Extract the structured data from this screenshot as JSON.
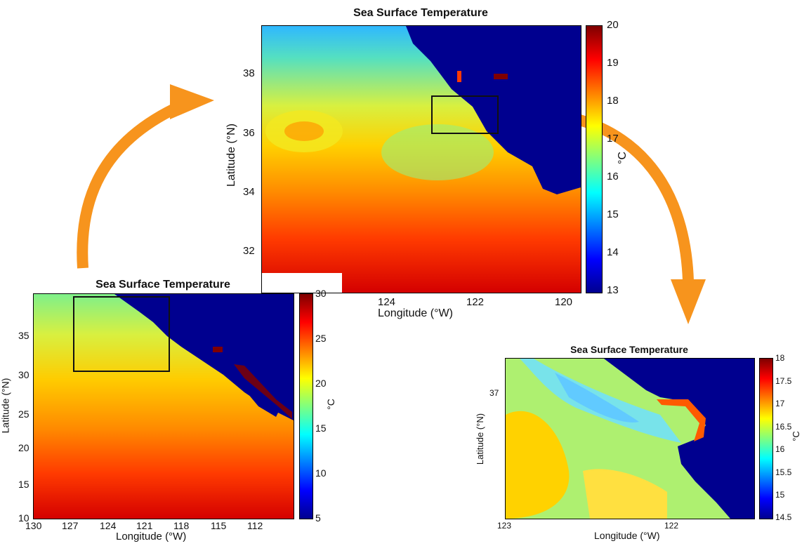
{
  "charts": [
    {
      "id": "main",
      "title": "Sea Surface Temperature",
      "xlabel": "Longitude (°W)",
      "ylabel": "Latitude (°N)",
      "xticks": [
        "124",
        "122",
        "120"
      ],
      "yticks": [
        "38",
        "36",
        "34",
        "32"
      ],
      "cbar_label": "°C",
      "cbar_ticks": [
        "20",
        "19",
        "18",
        "17",
        "16",
        "15",
        "14",
        "13"
      ]
    },
    {
      "id": "wide",
      "title": "Sea Surface Temperature",
      "xlabel": "Longitude (°W)",
      "ylabel": "Latitude (°N)",
      "xticks": [
        "130",
        "127",
        "124",
        "121",
        "118",
        "115",
        "112"
      ],
      "yticks": [
        "35",
        "30",
        "25",
        "20",
        "15",
        "10"
      ],
      "cbar_label": "°C",
      "cbar_ticks": [
        "30",
        "25",
        "20",
        "15",
        "10",
        "5"
      ]
    },
    {
      "id": "zoom",
      "title": "Sea Surface Temperature",
      "xlabel": "Longitude (°W)",
      "ylabel": "Latitude (°N)",
      "xticks": [
        "123",
        "122"
      ],
      "yticks": [
        "37"
      ],
      "cbar_label": "°C",
      "cbar_ticks": [
        "18",
        "17.5",
        "17",
        "16.5",
        "16",
        "15.5",
        "15",
        "14.5"
      ]
    }
  ],
  "chart_data": [
    {
      "type": "heatmap",
      "title": "Sea Surface Temperature",
      "xlabel": "Longitude (°W)",
      "ylabel": "Latitude (°N)",
      "xlim": [
        125.8,
        119.6
      ],
      "ylim": [
        31.2,
        39.5
      ],
      "clim": [
        13,
        20
      ],
      "colormap": "jet",
      "colorbar_label": "°C",
      "inset_box_lon": [
        123,
        121.6
      ],
      "inset_box_lat": [
        36.1,
        37.3
      ]
    },
    {
      "type": "heatmap",
      "title": "Sea Surface Temperature",
      "xlabel": "Longitude (°W)",
      "ylabel": "Latitude (°N)",
      "xlim": [
        130,
        109
      ],
      "ylim": [
        10,
        40
      ],
      "clim": [
        5,
        30
      ],
      "colormap": "jet",
      "colorbar_label": "°C",
      "inset_box_lon": [
        127,
        119.5
      ],
      "inset_box_lat": [
        30.5,
        40
      ]
    },
    {
      "type": "heatmap",
      "title": "Sea Surface Temperature",
      "xlabel": "Longitude (°W)",
      "ylabel": "Latitude (°N)",
      "xlim": [
        123,
        121.6
      ],
      "ylim": [
        36.1,
        37.3
      ],
      "clim": [
        14.5,
        18
      ],
      "colormap": "jet",
      "colorbar_label": "°C"
    }
  ],
  "colors": {
    "land": "#00008f",
    "arrow": "#f7941d",
    "jet": [
      "#00008f",
      "#0000ff",
      "#007fff",
      "#00ffff",
      "#7fff7f",
      "#ffff00",
      "#ff7f00",
      "#ff0000",
      "#7f0000"
    ]
  }
}
